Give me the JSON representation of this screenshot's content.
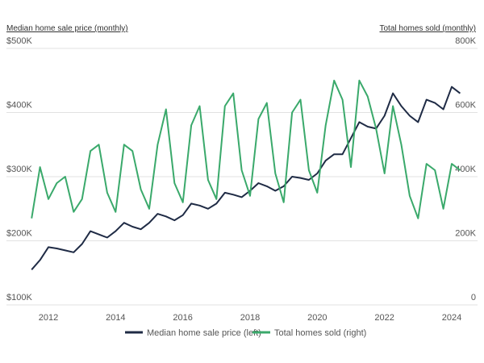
{
  "chart_data": {
    "type": "line",
    "y_label": "Median home sale price (monthly)",
    "y2_label": "Total homes sold (monthly)",
    "x": [
      2011.5,
      2011.75,
      2012,
      2012.25,
      2012.5,
      2012.75,
      2013,
      2013.25,
      2013.5,
      2013.75,
      2014,
      2014.25,
      2014.5,
      2014.75,
      2015,
      2015.25,
      2015.5,
      2015.75,
      2016,
      2016.25,
      2016.5,
      2016.75,
      2017,
      2017.25,
      2017.5,
      2017.75,
      2018,
      2018.25,
      2018.5,
      2018.75,
      2019,
      2019.25,
      2019.5,
      2019.75,
      2020,
      2020.25,
      2020.5,
      2020.75,
      2021,
      2021.25,
      2021.5,
      2021.75,
      2022,
      2022.25,
      2022.5,
      2022.75,
      2023,
      2023.25,
      2023.5,
      2023.75,
      2024,
      2024.25
    ],
    "xlim": [
      2011.04,
      2024.72
    ],
    "xticks": [
      2012,
      2014,
      2016,
      2018,
      2020,
      2022,
      2024
    ],
    "ylim": [
      100000,
      500000
    ],
    "yticks": [
      {
        "value": 100000,
        "label": "$100K"
      },
      {
        "value": 200000,
        "label": "$200K"
      },
      {
        "value": 300000,
        "label": "$300K"
      },
      {
        "value": 400000,
        "label": "$400K"
      },
      {
        "value": 500000,
        "label": "$500K"
      }
    ],
    "y2lim": [
      0,
      800000
    ],
    "y2ticks": [
      0,
      {
        "value": 200000,
        "label": "200K"
      },
      {
        "value": 400000,
        "label": "400K"
      },
      {
        "value": 600000,
        "label": "600K"
      },
      {
        "value": 800000,
        "label": "800K"
      }
    ],
    "grid": true,
    "series": [
      {
        "name": "Median home sale price (left)",
        "color": "#1f2b45",
        "values": [
          155000,
          170000,
          190000,
          188000,
          185000,
          182000,
          195000,
          215000,
          210000,
          205000,
          215000,
          228000,
          222000,
          218000,
          228000,
          242000,
          238000,
          232000,
          240000,
          258000,
          255000,
          250000,
          258000,
          275000,
          272000,
          268000,
          278000,
          290000,
          285000,
          278000,
          285000,
          300000,
          298000,
          295000,
          305000,
          325000,
          335000,
          335000,
          360000,
          385000,
          378000,
          375000,
          395000,
          430000,
          410000,
          395000,
          385000,
          420000,
          415000,
          405000,
          440000,
          430000
        ]
      },
      {
        "name": "Total homes sold (right)",
        "color": "#3aa96b",
        "axis": "y2",
        "values": [
          270000,
          430000,
          330000,
          380000,
          400000,
          290000,
          330000,
          480000,
          500000,
          350000,
          290000,
          500000,
          480000,
          360000,
          300000,
          500000,
          610000,
          380000,
          320000,
          560000,
          620000,
          390000,
          330000,
          620000,
          660000,
          420000,
          340000,
          580000,
          630000,
          410000,
          320000,
          600000,
          640000,
          420000,
          350000,
          560000,
          700000,
          640000,
          430000,
          700000,
          650000,
          550000,
          410000,
          620000,
          500000,
          340000,
          270000,
          440000,
          420000,
          300000,
          440000,
          420000
        ]
      }
    ]
  }
}
